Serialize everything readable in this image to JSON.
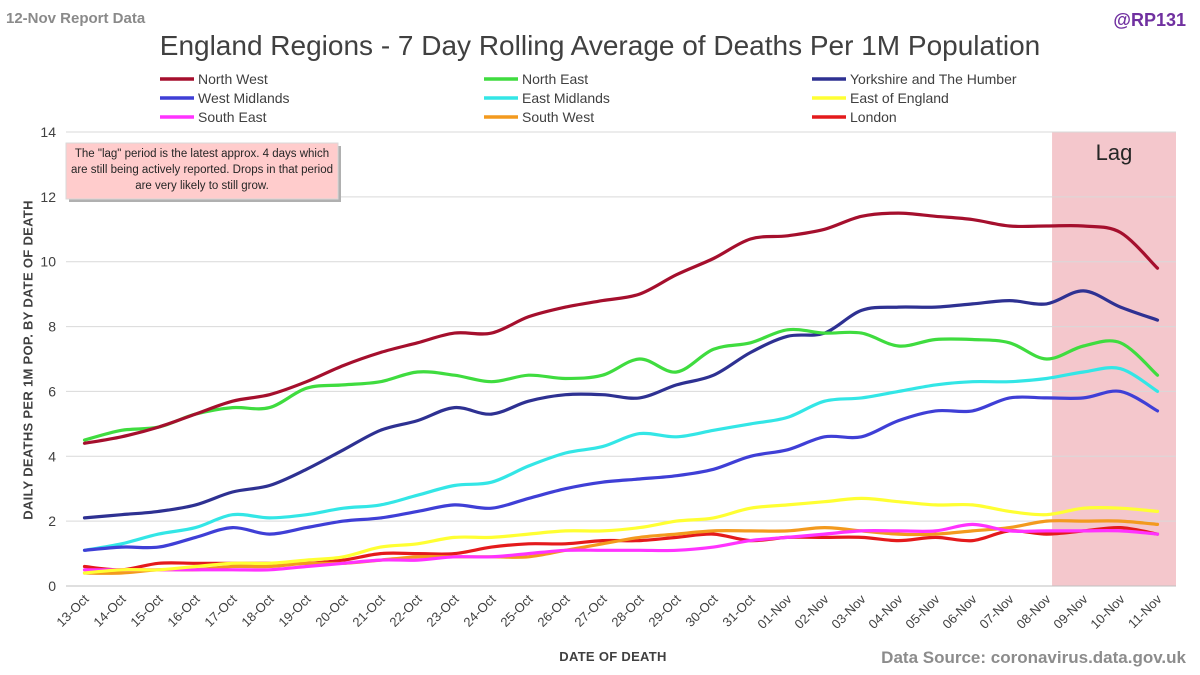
{
  "header": {
    "report_label": "12-Nov Report Data",
    "handle": "@RP131",
    "source": "Data Source: coronavirus.data.gov.uk"
  },
  "chart_data": {
    "type": "line",
    "title": "England Regions - 7 Day Rolling Average of Deaths Per 1M Population",
    "xlabel": "DATE OF DEATH",
    "ylabel": "DAILY DEATHS PER 1M POP. BY DATE OF DEATH",
    "ylim": [
      0,
      14
    ],
    "yticks": [
      0,
      2,
      4,
      6,
      8,
      10,
      12,
      14
    ],
    "grid": true,
    "legend": "top",
    "categories": [
      "13-Oct",
      "14-Oct",
      "15-Oct",
      "16-Oct",
      "17-Oct",
      "18-Oct",
      "19-Oct",
      "20-Oct",
      "21-Oct",
      "22-Oct",
      "23-Oct",
      "24-Oct",
      "25-Oct",
      "26-Oct",
      "27-Oct",
      "28-Oct",
      "29-Oct",
      "30-Oct",
      "31-Oct",
      "01-Nov",
      "02-Nov",
      "03-Nov",
      "04-Nov",
      "05-Nov",
      "06-Nov",
      "07-Nov",
      "08-Nov",
      "09-Nov",
      "10-Nov",
      "11-Nov"
    ],
    "lag_region": {
      "label": "Lag",
      "from": "08-Nov",
      "to": "11-Nov",
      "color": "#f4c7cc"
    },
    "annotation": "The \"lag\" period is the latest approx. 4 days which are still being actively reported. Drops in that period are very likely to still grow.",
    "series": [
      {
        "name": "North West",
        "color": "#a50f2d",
        "values": [
          4.4,
          4.6,
          4.9,
          5.3,
          5.7,
          5.9,
          6.3,
          6.8,
          7.2,
          7.5,
          7.8,
          7.8,
          8.3,
          8.6,
          8.8,
          9.0,
          9.6,
          10.1,
          10.7,
          10.8,
          11.0,
          11.4,
          11.5,
          11.4,
          11.3,
          11.1,
          11.1,
          11.1,
          10.9,
          9.8
        ]
      },
      {
        "name": "North East",
        "color": "#3fdc3f",
        "values": [
          4.5,
          4.8,
          4.9,
          5.3,
          5.5,
          5.5,
          6.1,
          6.2,
          6.3,
          6.6,
          6.5,
          6.3,
          6.5,
          6.4,
          6.5,
          7.0,
          6.6,
          7.3,
          7.5,
          7.9,
          7.8,
          7.8,
          7.4,
          7.6,
          7.6,
          7.5,
          7.0,
          7.4,
          7.5,
          6.5
        ]
      },
      {
        "name": "Yorkshire and The Humber",
        "color": "#2e3192",
        "values": [
          2.1,
          2.2,
          2.3,
          2.5,
          2.9,
          3.1,
          3.6,
          4.2,
          4.8,
          5.1,
          5.5,
          5.3,
          5.7,
          5.9,
          5.9,
          5.8,
          6.2,
          6.5,
          7.2,
          7.7,
          7.8,
          8.5,
          8.6,
          8.6,
          8.7,
          8.8,
          8.7,
          9.1,
          8.6,
          8.2
        ]
      },
      {
        "name": "West Midlands",
        "color": "#3f3fd6",
        "values": [
          1.1,
          1.2,
          1.2,
          1.5,
          1.8,
          1.6,
          1.8,
          2.0,
          2.1,
          2.3,
          2.5,
          2.4,
          2.7,
          3.0,
          3.2,
          3.3,
          3.4,
          3.6,
          4.0,
          4.2,
          4.6,
          4.6,
          5.1,
          5.4,
          5.4,
          5.8,
          5.8,
          5.8,
          6.0,
          5.4
        ]
      },
      {
        "name": "East Midlands",
        "color": "#33e6e6",
        "values": [
          1.1,
          1.3,
          1.6,
          1.8,
          2.2,
          2.1,
          2.2,
          2.4,
          2.5,
          2.8,
          3.1,
          3.2,
          3.7,
          4.1,
          4.3,
          4.7,
          4.6,
          4.8,
          5.0,
          5.2,
          5.7,
          5.8,
          6.0,
          6.2,
          6.3,
          6.3,
          6.4,
          6.6,
          6.7,
          6.0
        ]
      },
      {
        "name": "East of England",
        "color": "#ffff33",
        "values": [
          0.4,
          0.5,
          0.5,
          0.6,
          0.7,
          0.7,
          0.8,
          0.9,
          1.2,
          1.3,
          1.5,
          1.5,
          1.6,
          1.7,
          1.7,
          1.8,
          2.0,
          2.1,
          2.4,
          2.5,
          2.6,
          2.7,
          2.6,
          2.5,
          2.5,
          2.3,
          2.2,
          2.4,
          2.4,
          2.3
        ]
      },
      {
        "name": "South East",
        "color": "#ff33ff",
        "values": [
          0.5,
          0.5,
          0.5,
          0.5,
          0.5,
          0.5,
          0.6,
          0.7,
          0.8,
          0.8,
          0.9,
          0.9,
          1.0,
          1.1,
          1.1,
          1.1,
          1.1,
          1.2,
          1.4,
          1.5,
          1.6,
          1.7,
          1.7,
          1.7,
          1.9,
          1.7,
          1.7,
          1.7,
          1.7,
          1.6
        ]
      },
      {
        "name": "South West",
        "color": "#f39a1e",
        "values": [
          0.4,
          0.4,
          0.5,
          0.5,
          0.6,
          0.6,
          0.7,
          0.7,
          0.8,
          0.9,
          0.9,
          0.9,
          0.9,
          1.1,
          1.3,
          1.5,
          1.6,
          1.7,
          1.7,
          1.7,
          1.8,
          1.7,
          1.6,
          1.6,
          1.7,
          1.8,
          2.0,
          2.0,
          2.0,
          1.9
        ]
      },
      {
        "name": "London",
        "color": "#e41a1c",
        "values": [
          0.6,
          0.5,
          0.7,
          0.7,
          0.7,
          0.7,
          0.7,
          0.8,
          1.0,
          1.0,
          1.0,
          1.2,
          1.3,
          1.3,
          1.4,
          1.4,
          1.5,
          1.6,
          1.4,
          1.5,
          1.5,
          1.5,
          1.4,
          1.5,
          1.4,
          1.7,
          1.6,
          1.7,
          1.8,
          1.6
        ]
      }
    ]
  }
}
